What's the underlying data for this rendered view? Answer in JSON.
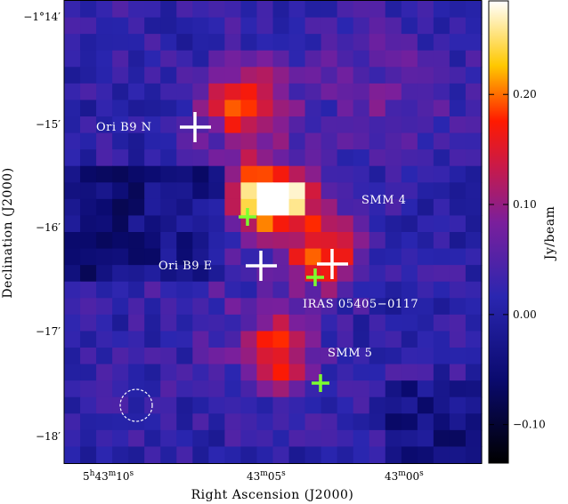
{
  "axes": {
    "x_title": "Right Ascension (J2000)",
    "y_title": "Declination (J2000)",
    "x_ticks": [
      {
        "h": "5",
        "hu": "h",
        "m": "43",
        "mu": "m",
        "s": "10",
        "su": "s"
      },
      {
        "h": "",
        "hu": "",
        "m": "43",
        "mu": "m",
        "s": "05",
        "su": "s"
      },
      {
        "h": "",
        "hu": "",
        "m": "43",
        "mu": "m",
        "s": "00",
        "su": "s"
      }
    ],
    "y_ticks": [
      {
        "deg": "−1°",
        "min": "14′"
      },
      {
        "deg": "",
        "min": "−15′"
      },
      {
        "deg": "",
        "min": "−16′"
      },
      {
        "deg": "",
        "min": "−17′"
      },
      {
        "deg": "",
        "min": "−18′"
      }
    ]
  },
  "colorbar": {
    "label": "Jy/beam",
    "ticks": [
      "0.20",
      "0.10",
      "0.00",
      "−0.10"
    ],
    "tick_values": [
      0.2,
      0.1,
      0.0,
      -0.1
    ],
    "min": -0.135,
    "max": 0.285
  },
  "sources": {
    "white_cross_labels": [
      "Ori B9 N",
      "Ori B9 E",
      "IRAS 05405−0117",
      "SMM 4",
      "SMM 5"
    ],
    "labels": {
      "ori_b9_n": "Ori B9 N",
      "ori_b9_e": "Ori B9 E",
      "iras": "IRAS 05405−0117",
      "smm4": "SMM 4",
      "smm5": "SMM 5"
    }
  },
  "colors": {
    "white_marker": "#ffffff",
    "green_marker": "#7cff2e",
    "beam_circle": "#ffffff"
  },
  "image": {
    "grid_cols": 26,
    "grid_rows": 28,
    "cmap": "black-blue-purple-red-yellow-white"
  }
}
